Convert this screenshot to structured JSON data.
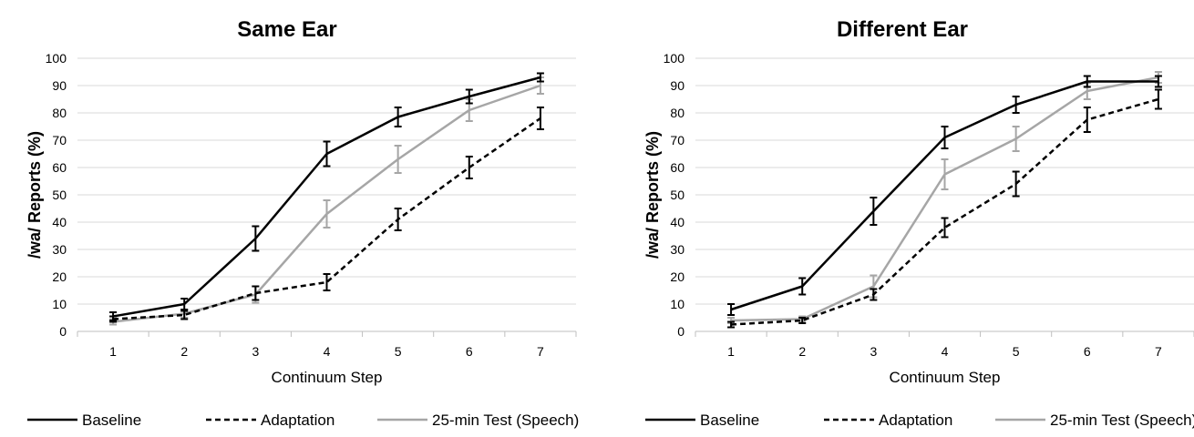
{
  "chart_data": [
    {
      "type": "line",
      "title": "Same Ear",
      "xlabel": "Continuum Step",
      "ylabel": "/wa/ Reports (%)",
      "ylim": [
        0,
        100
      ],
      "yticks": [
        0,
        10,
        20,
        30,
        40,
        50,
        60,
        70,
        80,
        90,
        100
      ],
      "x": [
        1,
        2,
        3,
        4,
        5,
        6,
        7
      ],
      "grid": "horizontal",
      "legend_position": "bottom",
      "series": [
        {
          "name": "Baseline",
          "color": "#000000",
          "dash": "solid",
          "values": [
            5.5,
            10,
            34,
            65,
            78.5,
            86,
            93
          ],
          "errors": [
            1.5,
            2,
            4.5,
            4.5,
            3.5,
            2.5,
            1.5
          ]
        },
        {
          "name": "Adaptation",
          "color": "#000000",
          "dash": "dashed",
          "values": [
            4.5,
            6,
            14,
            18,
            41,
            60,
            78
          ],
          "errors": [
            1,
            1.5,
            2.5,
            3,
            4,
            4,
            4
          ]
        },
        {
          "name": "25-min Test (Speech)",
          "color": "#a6a6a6",
          "dash": "solid",
          "values": [
            3.5,
            6.5,
            13.5,
            43,
            63,
            81,
            90
          ],
          "errors": [
            1,
            1.5,
            3,
            5,
            5,
            4,
            3
          ]
        }
      ]
    },
    {
      "type": "line",
      "title": "Different Ear",
      "xlabel": "Continuum Step",
      "ylabel": "/wa/ Reports (%)",
      "ylim": [
        0,
        100
      ],
      "yticks": [
        0,
        10,
        20,
        30,
        40,
        50,
        60,
        70,
        80,
        90,
        100
      ],
      "x": [
        1,
        2,
        3,
        4,
        5,
        6,
        7
      ],
      "grid": "horizontal",
      "legend_position": "bottom",
      "series": [
        {
          "name": "Baseline",
          "color": "#000000",
          "dash": "solid",
          "values": [
            8,
            16.5,
            44,
            71,
            83,
            91.5,
            91.5
          ],
          "errors": [
            2,
            3,
            5,
            4,
            3,
            2,
            2
          ]
        },
        {
          "name": "Adaptation",
          "color": "#000000",
          "dash": "dashed",
          "values": [
            2.5,
            4,
            13.5,
            38,
            54,
            77.5,
            85
          ],
          "errors": [
            1,
            1,
            2,
            3.5,
            4.5,
            4.5,
            3.5
          ]
        },
        {
          "name": "25-min Test (Speech)",
          "color": "#a6a6a6",
          "dash": "solid",
          "values": [
            4,
            4.5,
            16.5,
            57.5,
            70.5,
            88,
            93
          ],
          "errors": [
            1,
            1,
            4,
            5.5,
            4.5,
            3,
            2
          ]
        }
      ]
    }
  ]
}
